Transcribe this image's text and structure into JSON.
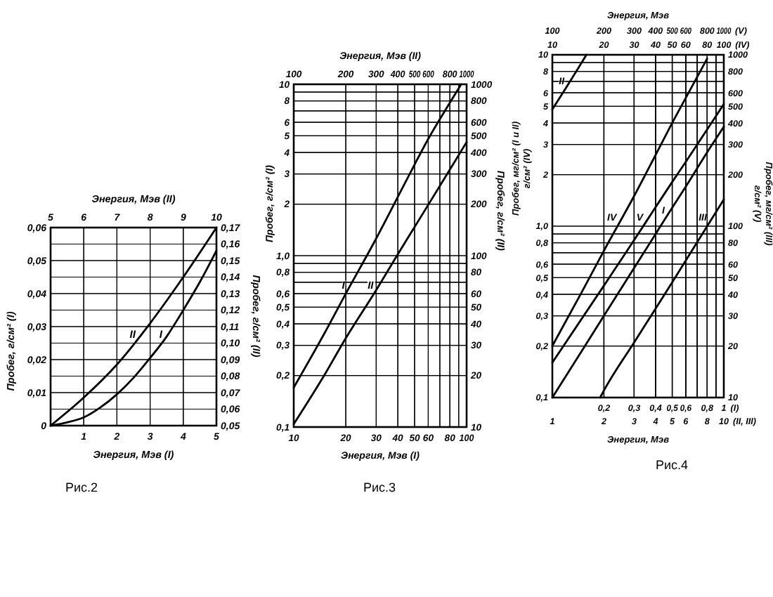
{
  "chart_data": [
    {
      "type": "line",
      "title": "Рис.2",
      "xlabel": "Энергия, Мэв (I)",
      "ylabel": "Пробег, г/см² (I)",
      "xlim": [
        0,
        5
      ],
      "xticks": [
        {
          "value": 0,
          "label": null
        },
        1,
        2,
        3,
        4,
        5
      ],
      "ylim": [
        0,
        0.06
      ],
      "yticks": [
        0,
        {
          "value": 0.01,
          "label": "0,01"
        },
        {
          "value": 0.02,
          "label": "0,02"
        },
        {
          "value": 0.03,
          "label": "0,03"
        },
        {
          "value": 0.04,
          "label": "0,04"
        },
        {
          "value": 0.05,
          "label": "0,05"
        },
        {
          "value": 0.06,
          "label": "0,06"
        }
      ],
      "grid": true,
      "series": [
        {
          "name": "I",
          "color": "#000000",
          "x": [
            0,
            0.5,
            1,
            1.5,
            2,
            2.5,
            3,
            3.5,
            4,
            4.5,
            5
          ],
          "values": [
            0,
            0.001,
            0.0025,
            0.0055,
            0.0095,
            0.0145,
            0.0205,
            0.027,
            0.035,
            0.0435,
            0.053
          ]
        }
      ]
    },
    {
      "type": "line",
      "xlabel": "Энергия, Мэв (II)",
      "ylabel": "Пробег, г/см² (II)",
      "xlim": [
        5,
        10
      ],
      "xticks": [
        5,
        6,
        7,
        8,
        9,
        10
      ],
      "ylim": [
        0.05,
        0.17
      ],
      "yticks": [
        {
          "value": 0.05,
          "label": "0,05"
        },
        {
          "value": 0.06,
          "label": "0,06"
        },
        {
          "value": 0.07,
          "label": "0,07"
        },
        {
          "value": 0.08,
          "label": "0,08"
        },
        {
          "value": 0.09,
          "label": "0,09"
        },
        {
          "value": 0.1,
          "label": "0,10"
        },
        {
          "value": 0.11,
          "label": "0,11"
        },
        {
          "value": 0.12,
          "label": "0,12"
        },
        {
          "value": 0.13,
          "label": "0,13"
        },
        {
          "value": 0.14,
          "label": "0,14"
        },
        {
          "value": 0.15,
          "label": "0,15"
        },
        {
          "value": 0.16,
          "label": "0,16"
        },
        {
          "value": 0.17,
          "label": "0,17"
        }
      ],
      "grid": true,
      "series": [
        {
          "name": "II",
          "color": "#000000",
          "x": [
            5,
            6,
            7,
            8,
            9,
            10
          ],
          "values": [
            0.05,
            0.067,
            0.087,
            0.112,
            0.14,
            0.17
          ]
        }
      ]
    },
    {
      "type": "line",
      "title": "Рис.3",
      "xlabel": "Энергия, Мэв (I)",
      "ylabel": "Пробег, г/см² (I)",
      "log": "xy",
      "xlim": [
        10,
        100
      ],
      "xticks": [
        10,
        20,
        30,
        40,
        50,
        60,
        {
          "value": 70,
          "label": null
        },
        80,
        {
          "value": 90,
          "label": null
        },
        100
      ],
      "ylim": [
        0.1,
        10
      ],
      "yticks": [
        {
          "value": 0.1,
          "label": "0,1"
        },
        {
          "value": 0.2,
          "label": "0,2"
        },
        {
          "value": 0.3,
          "label": "0,3"
        },
        {
          "value": 0.4,
          "label": "0,4"
        },
        {
          "value": 0.5,
          "label": "0,5"
        },
        {
          "value": 0.6,
          "label": "0,6"
        },
        {
          "value": 0.7,
          "label": null
        },
        {
          "value": 0.8,
          "label": "0,8"
        },
        {
          "value": 0.9,
          "label": null
        },
        {
          "value": 1,
          "label": "1,0"
        },
        2,
        3,
        4,
        5,
        6,
        {
          "value": 7,
          "label": null
        },
        8,
        {
          "value": 9,
          "label": null
        },
        10
      ],
      "grid": true,
      "series": [
        {
          "name": "I",
          "color": "#000000",
          "x": [
            10,
            15,
            20,
            30,
            40,
            50,
            60,
            80,
            93
          ],
          "values": [
            0.17,
            0.35,
            0.6,
            1.26,
            2.2,
            3.4,
            4.8,
            7.8,
            10
          ]
        }
      ]
    },
    {
      "type": "line",
      "xlabel": "Энергия, Мэв (II)",
      "ylabel": "Пробег, г/см² (II)",
      "log": "xy",
      "xlim": [
        100,
        1000
      ],
      "xticks": [
        100,
        200,
        300,
        400,
        500,
        600,
        {
          "value": 700,
          "label": null
        },
        800,
        {
          "value": 900,
          "label": null
        },
        1000
      ],
      "ylim": [
        10,
        1000
      ],
      "yticks": [
        10,
        20,
        30,
        40,
        50,
        60,
        {
          "value": 70,
          "label": null
        },
        80,
        {
          "value": 90,
          "label": null
        },
        100,
        200,
        300,
        400,
        500,
        600,
        {
          "value": 700,
          "label": null
        },
        800,
        {
          "value": 900,
          "label": null
        },
        1000
      ],
      "grid": true,
      "series": [
        {
          "name": "II",
          "color": "#000000",
          "x": [
            100,
            150,
            200,
            300,
            400,
            500,
            600,
            800,
            1000
          ],
          "values": [
            10.4,
            20,
            33,
            63,
            102,
            147,
            198,
            318,
            460
          ]
        }
      ]
    },
    {
      "type": "line",
      "title": "Рис.4",
      "xlabel": "(I)",
      "ylabel": "Пробег, мг/см² (I и II)\nг/см² (IV)",
      "log": "xy",
      "annotations": [
        "Энергия, Мэв"
      ],
      "xlim": [
        0.1,
        1
      ],
      "xticks": [
        {
          "value": 0.1,
          "label": null
        },
        {
          "value": 0.2,
          "label": "0,2"
        },
        {
          "value": 0.3,
          "label": "0,3"
        },
        {
          "value": 0.4,
          "label": "0,4"
        },
        {
          "value": 0.5,
          "label": "0,5"
        },
        {
          "value": 0.6,
          "label": "0,6"
        },
        {
          "value": 0.7,
          "label": null
        },
        {
          "value": 0.8,
          "label": "0,8"
        },
        {
          "value": 0.9,
          "label": null
        },
        1
      ],
      "ylim": [
        0.1,
        10
      ],
      "yticks": [
        {
          "value": 0.1,
          "label": "0,1"
        },
        {
          "value": 0.2,
          "label": "0,2"
        },
        {
          "value": 0.3,
          "label": "0,3"
        },
        {
          "value": 0.4,
          "label": "0,4"
        },
        {
          "value": 0.5,
          "label": "0,5"
        },
        {
          "value": 0.6,
          "label": "0,6"
        },
        {
          "value": 0.7,
          "label": null
        },
        {
          "value": 0.8,
          "label": "0,8"
        },
        {
          "value": 0.9,
          "label": null
        },
        {
          "value": 1,
          "label": "1,0"
        },
        2,
        3,
        4,
        5,
        6,
        {
          "value": 7,
          "label": null
        },
        8,
        {
          "value": 9,
          "label": null
        },
        10
      ],
      "grid": true,
      "series": [
        {
          "name": "I",
          "color": "#000000",
          "x": [
            0.1,
            0.15,
            0.2,
            0.3,
            0.4,
            0.5,
            0.6,
            0.8,
            1
          ],
          "values": [
            0.1,
            0.19,
            0.3,
            0.57,
            0.9,
            1.28,
            1.7,
            2.7,
            3.8
          ]
        }
      ]
    },
    {
      "type": "line",
      "xlabel": "(II, III)",
      "log": "xy",
      "tick_labels": "x",
      "xlim": [
        1,
        10
      ],
      "xticks": [
        1,
        2,
        3,
        4,
        5,
        6,
        {
          "value": 7,
          "label": null
        },
        8,
        {
          "value": 9,
          "label": null
        },
        10
      ],
      "ylim": [
        0.1,
        10
      ],
      "grid": true,
      "series": [
        {
          "name": "II",
          "color": "#000000",
          "x": [
            1,
            1.2,
            1.4,
            1.58
          ],
          "values": [
            4.8,
            6.4,
            8.2,
            10
          ]
        }
      ]
    },
    {
      "type": "line",
      "ylabel": "Пробег, мг/см² (III)\nг/см² (V)",
      "log": "xy",
      "tick_labels": "y",
      "xlim": [
        1,
        10
      ],
      "ylim": [
        10,
        1000
      ],
      "yticks": [
        10,
        20,
        30,
        40,
        50,
        60,
        {
          "value": 70,
          "label": null
        },
        80,
        {
          "value": 90,
          "label": null
        },
        100,
        200,
        300,
        400,
        500,
        600,
        {
          "value": 700,
          "label": null
        },
        800,
        {
          "value": 900,
          "label": null
        },
        1000
      ],
      "grid": true,
      "series": [
        {
          "name": "III",
          "color": "#000000",
          "x": [
            1.9,
            2,
            3,
            4,
            5,
            6,
            8,
            10
          ],
          "values": [
            10,
            11,
            21,
            33,
            47,
            63,
            100,
            143
          ]
        }
      ]
    },
    {
      "type": "line",
      "xlabel": "(IV)",
      "log": "xy",
      "tick_labels": "x",
      "annotations": [
        "Энергия, Мэв"
      ],
      "xlim": [
        10,
        100
      ],
      "xticks": [
        10,
        20,
        30,
        40,
        50,
        60,
        {
          "value": 70,
          "label": null
        },
        80,
        {
          "value": 90,
          "label": null
        },
        100
      ],
      "ylim": [
        0.1,
        10
      ],
      "grid": true,
      "series": [
        {
          "name": "IV",
          "color": "#000000",
          "x": [
            10,
            15,
            20,
            30,
            40,
            50,
            60,
            80
          ],
          "values": [
            0.2,
            0.42,
            0.72,
            1.5,
            2.6,
            4.0,
            5.6,
            9.5
          ]
        }
      ]
    },
    {
      "type": "line",
      "xlabel": "(V)",
      "log": "xy",
      "tick_labels": "x",
      "xlim": [
        100,
        1000
      ],
      "xticks": [
        100,
        200,
        300,
        400,
        500,
        600,
        {
          "value": 700,
          "label": null
        },
        800,
        {
          "value": 900,
          "label": null
        },
        1000
      ],
      "ylim": [
        10,
        1000
      ],
      "grid": true,
      "series": [
        {
          "name": "V",
          "color": "#000000",
          "x": [
            100,
            200,
            300,
            400,
            500,
            600,
            800,
            1000
          ],
          "values": [
            16,
            45,
            83,
            129,
            181,
            237,
            367,
            515
          ]
        }
      ]
    }
  ]
}
